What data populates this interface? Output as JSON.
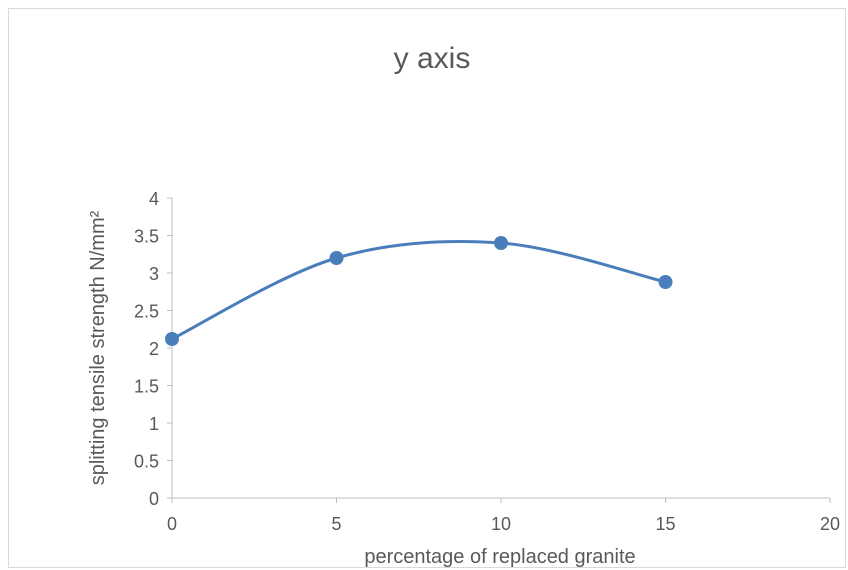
{
  "chart_data": {
    "type": "scatter",
    "title": "y axis",
    "xlabel": "percentage of replaced granite",
    "ylabel": "splitting tensile strength N/mm²",
    "xlim": [
      0,
      20
    ],
    "ylim": [
      0,
      4
    ],
    "x_ticks": [
      "0",
      "5",
      "10",
      "15",
      "20"
    ],
    "y_ticks": [
      "0",
      "0.5",
      "1",
      "1.5",
      "2",
      "2.5",
      "3",
      "3.5",
      "4"
    ],
    "smooth_line": true,
    "markers": true,
    "grid": false,
    "legend": "none",
    "series": [
      {
        "x": [
          0,
          5,
          10,
          15
        ],
        "y": [
          2.12,
          3.2,
          3.4,
          2.88
        ],
        "color": "#4a7ebb"
      }
    ],
    "axis_color": "#bfbfbf",
    "text_color": "#595959"
  }
}
